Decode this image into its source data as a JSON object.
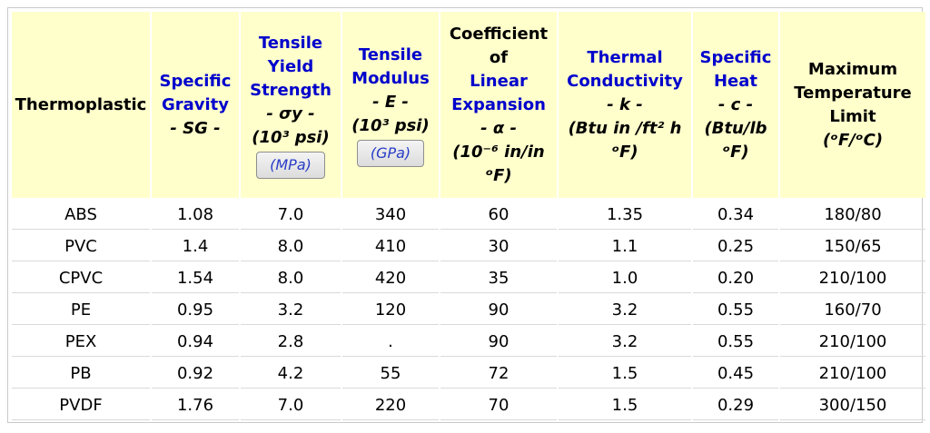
{
  "headers": [
    {
      "lines": [
        {
          "text": "Thermoplastic",
          "blue": false,
          "italic": false
        }
      ]
    },
    {
      "lines": [
        {
          "text": "Specific",
          "blue": true
        },
        {
          "text": "Gravity",
          "blue": true
        },
        {
          "text": "- SG -",
          "blue": false,
          "italic": true
        }
      ]
    },
    {
      "lines": [
        {
          "text": "Tensile",
          "blue": true
        },
        {
          "text": "Yield",
          "blue": true
        },
        {
          "text": "Strength",
          "blue": true
        },
        {
          "text": "- σy -",
          "blue": false,
          "italic": true
        },
        {
          "text": "(10³ psi)",
          "blue": false,
          "italic": true
        }
      ],
      "button": "(MPa)"
    },
    {
      "lines": [
        {
          "text": "Tensile",
          "blue": true
        },
        {
          "text": "Modulus",
          "blue": true
        },
        {
          "text": "- E -",
          "blue": false,
          "italic": true
        },
        {
          "text": "(10³ psi)",
          "blue": false,
          "italic": true
        }
      ],
      "button": "(GPa)"
    },
    {
      "lines": [
        {
          "text": "Coefficient",
          "blue": false
        },
        {
          "text": "of",
          "blue": false
        },
        {
          "text": "Linear",
          "blue": true
        },
        {
          "text": "Expansion",
          "blue": true
        },
        {
          "text": "- α -",
          "blue": false,
          "italic": true
        },
        {
          "text": "(10⁻⁶ in/in",
          "blue": false,
          "italic": true
        },
        {
          "text": "ᵒF)",
          "blue": false,
          "italic": true
        }
      ]
    },
    {
      "lines": [
        {
          "text": "Thermal",
          "blue": true
        },
        {
          "text": "Conductivity",
          "blue": true
        },
        {
          "text": "- k -",
          "blue": false,
          "italic": true
        },
        {
          "text": "(Btu in /ft² h",
          "blue": false,
          "italic": true
        },
        {
          "text": "ᵒF)",
          "blue": false,
          "italic": true
        }
      ]
    },
    {
      "lines": [
        {
          "text": "Specific",
          "blue": true
        },
        {
          "text": "Heat",
          "blue": true
        },
        {
          "text": "- c -",
          "blue": false,
          "italic": true
        },
        {
          "text": "(Btu/lb",
          "blue": false,
          "italic": true
        },
        {
          "text": "ᵒF)",
          "blue": false,
          "italic": true
        }
      ]
    },
    {
      "lines": [
        {
          "text": "Maximum",
          "blue": false
        },
        {
          "text": "Temperature",
          "blue": false
        },
        {
          "text": "Limit",
          "blue": false
        },
        {
          "text": "(ᵒF/ᵒC)",
          "blue": false,
          "italic": true
        }
      ]
    }
  ],
  "rows": [
    [
      "ABS",
      "1.08",
      "7.0",
      "340",
      "60",
      "1.35",
      "0.34",
      "180/80"
    ],
    [
      "PVC",
      "1.4",
      "8.0",
      "410",
      "30",
      "1.1",
      "0.25",
      "150/65"
    ],
    [
      "CPVC",
      "1.54",
      "8.0",
      "420",
      "35",
      "1.0",
      "0.20",
      "210/100"
    ],
    [
      "PE",
      "0.95",
      "3.2",
      "120",
      "90",
      "3.2",
      "0.55",
      "160/70"
    ],
    [
      "PEX",
      "0.94",
      "2.8",
      ".",
      "90",
      "3.2",
      "0.55",
      "210/100"
    ],
    [
      "PB",
      "0.92",
      "4.2",
      "55",
      "72",
      "1.5",
      "0.45",
      "210/100"
    ],
    [
      "PVDF",
      "1.76",
      "7.0",
      "220",
      "70",
      "1.5",
      "0.29",
      "300/150"
    ]
  ],
  "colors": {
    "header_bg": "#ffffcc",
    "header_blue": "#0000cc",
    "button_text": "#2a3ec6"
  }
}
